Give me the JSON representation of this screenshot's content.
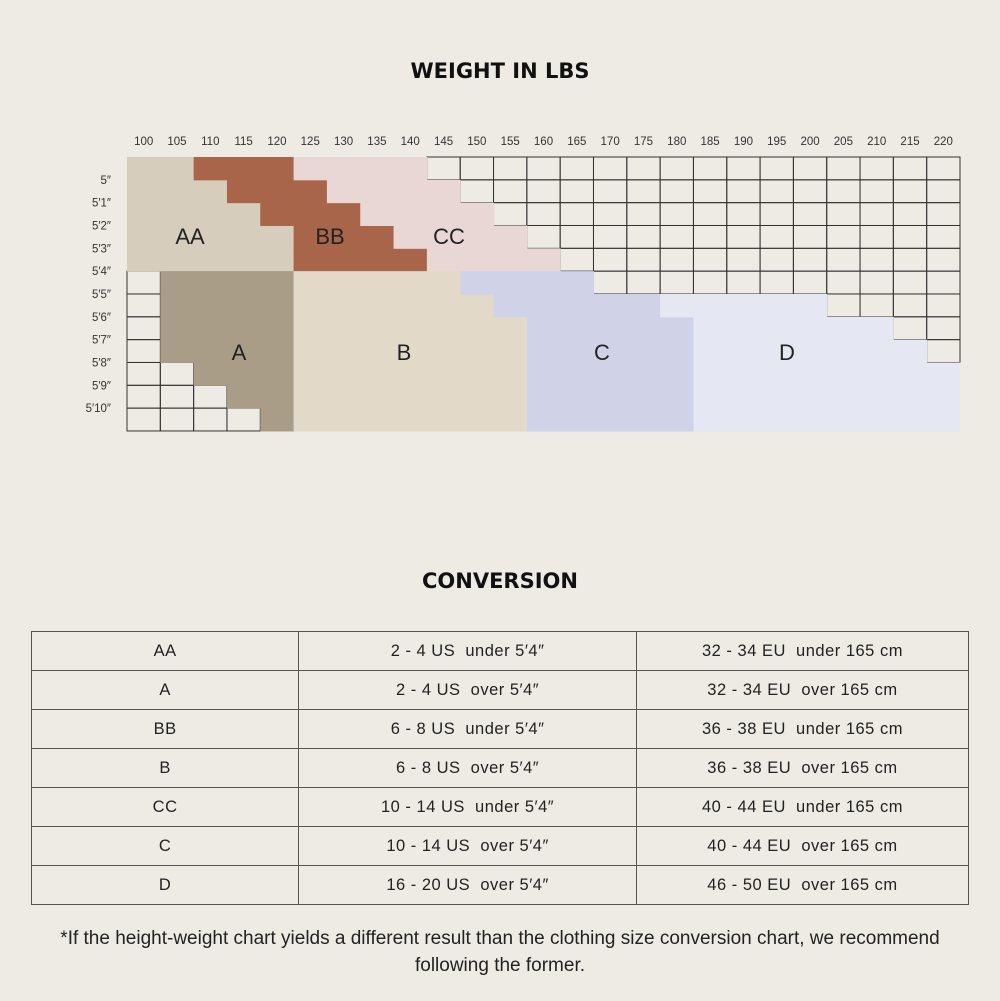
{
  "size_chart": {
    "title": "WEIGHT IN LBS",
    "weights": [
      100,
      105,
      110,
      115,
      120,
      125,
      130,
      135,
      140,
      145,
      150,
      155,
      160,
      165,
      170,
      175,
      180,
      185,
      190,
      195,
      200,
      205,
      210,
      215,
      220
    ],
    "heights": [
      "5″",
      "5′1″",
      "5′2″",
      "5′3″",
      "5′4″",
      "5′5″",
      "5′6″",
      "5′7″",
      "5′8″",
      "5′9″",
      "5′10″"
    ],
    "zones": [
      "AA",
      "BB",
      "CC",
      "A",
      "B",
      "C",
      "D"
    ]
  },
  "conversion": {
    "title": "CONVERSION",
    "rows": [
      [
        "AA",
        "2 - 4 US  under 5′4″",
        "32 - 34 EU  under 165 cm"
      ],
      [
        "A",
        "2 - 4 US  over 5′4″",
        "32 - 34 EU  over 165 cm"
      ],
      [
        "BB",
        "6 - 8 US  under 5′4″",
        "36 - 38 EU  under 165 cm"
      ],
      [
        "B",
        "6 - 8 US  over 5′4″",
        "36 - 38 EU  over 165 cm"
      ],
      [
        "CC",
        "10 - 14 US  under 5′4″",
        "40 - 44 EU  under 165 cm"
      ],
      [
        "C",
        "10 - 14 US  over 5′4″",
        "40 - 44 EU  over 165 cm"
      ],
      [
        "D",
        "16 - 20 US  over 5′4″",
        "46 - 50 EU  over 165 cm"
      ]
    ]
  },
  "footnote": "*If the height-weight chart yields a different result than the clothing size conversion chart, we recommend following the former."
}
